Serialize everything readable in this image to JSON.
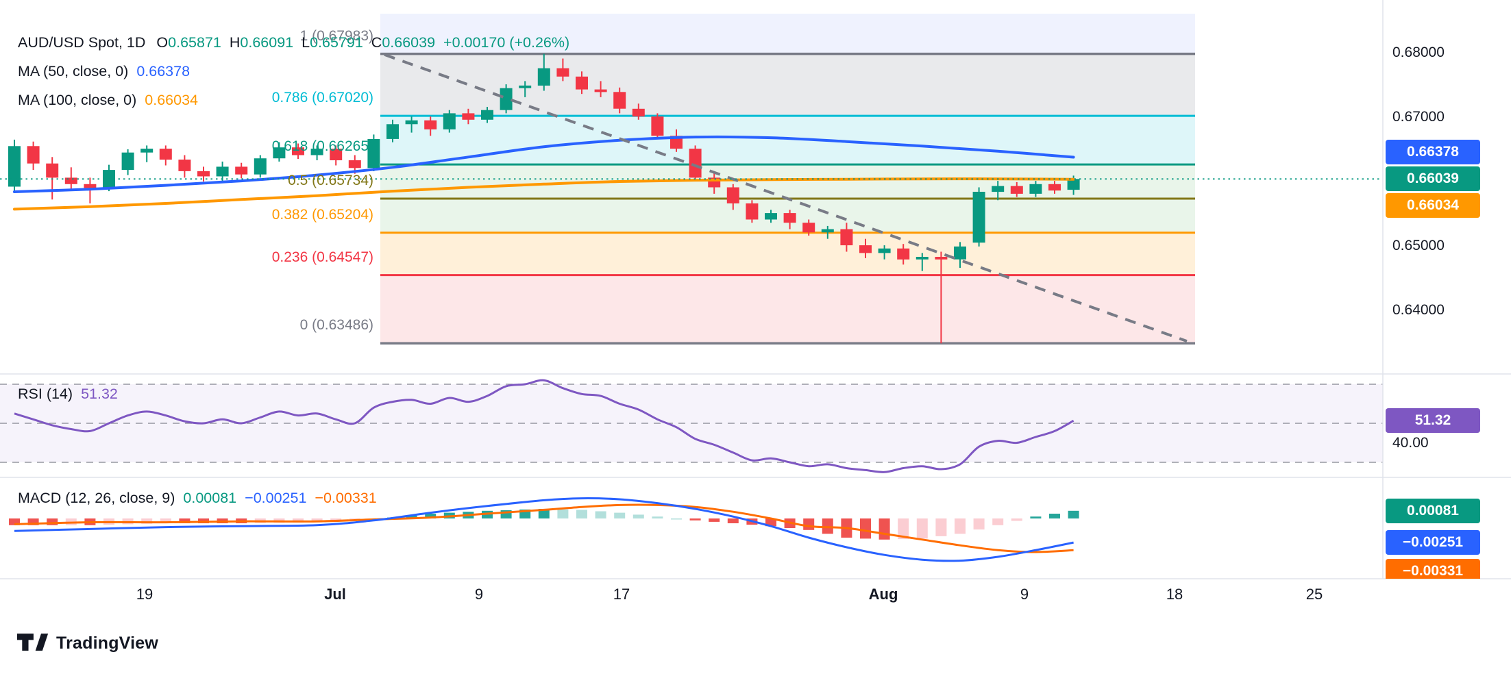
{
  "header": {
    "symbol": "AUD/USD Spot, 1D",
    "ohlc": [
      {
        "label": "O",
        "value": "0.65871"
      },
      {
        "label": "H",
        "value": "0.66091"
      },
      {
        "label": "L",
        "value": "0.65791"
      },
      {
        "label": "C",
        "value": "0.66039"
      }
    ],
    "change": "+0.00170 (+0.26%)"
  },
  "indicators": {
    "ma50": {
      "name": "MA (50, close, 0)",
      "value": "0.66378",
      "color": "#2962FF"
    },
    "ma100": {
      "name": "MA (100, close, 0)",
      "value": "0.66034",
      "color": "#FF9800"
    },
    "rsi": {
      "name": "RSI (14)",
      "value": "51.32",
      "color": "#7E57C2"
    },
    "macd": {
      "name": "MACD (12, 26, close, 9)",
      "hist": "0.00081",
      "macd": "−0.00251",
      "signal": "−0.00331",
      "hist_color": "#089981",
      "macd_color": "#2962FF",
      "signal_color": "#FF6D00"
    }
  },
  "badges": {
    "ma50": {
      "text": "0.66378",
      "color": "#2962FF"
    },
    "last": {
      "text": "0.66039",
      "color": "#089981"
    },
    "ma100": {
      "text": "0.66034",
      "color": "#FF9800"
    },
    "rsi": {
      "text": "51.32",
      "color": "#7E57C2"
    },
    "macd_hist": {
      "text": "0.00081",
      "color": "#089981"
    },
    "macd_line": {
      "text": "−0.00251",
      "color": "#2962FF"
    },
    "macd_signal": {
      "text": "−0.00331",
      "color": "#FF6D00"
    }
  },
  "footer": {
    "logo_text": "TradingView"
  },
  "chart_data": {
    "type": "candlestick",
    "title": "AUD/USD Spot, 1D",
    "pane_order": [
      "price",
      "rsi",
      "macd"
    ],
    "last_bar": {
      "open": 0.65871,
      "high": 0.66091,
      "low": 0.65791,
      "close": 0.66039,
      "change": "+0.00170",
      "change_pct": "+0.26%"
    },
    "axes": {
      "price_ticks": [
        {
          "text": "0.68000",
          "value": 0.68
        },
        {
          "text": "0.67000",
          "value": 0.67
        },
        {
          "text": "0.65000",
          "value": 0.65
        },
        {
          "text": "0.64000",
          "value": 0.64
        }
      ],
      "rsi_tick": {
        "text": "40.00",
        "value": 40
      },
      "time_ticks": [
        "19",
        "Jul",
        "9",
        "17",
        "Aug",
        "9",
        "18",
        "25"
      ]
    },
    "colors": {
      "up": "#089981",
      "down": "#F23645",
      "ma50": "#2962FF",
      "ma100": "#FF9800",
      "rsi": "#7E57C2",
      "rsi_band": "rgba(126,87,194,0.07)",
      "macd": "#2962FF",
      "signal": "#FF6D00",
      "hist_up": "#26A69A",
      "hist_up_weak": "#B2DFDB",
      "hist_down": "#EF5350",
      "hist_down_weak": "#FBCDD2",
      "trend": "#787B86",
      "current_line": "#089981",
      "separator": "#E0E3EB"
    },
    "candles": [
      [
        0.6592,
        0.6665,
        0.6585,
        0.6655
      ],
      [
        0.6655,
        0.6662,
        0.6618,
        0.6628
      ],
      [
        0.6628,
        0.6638,
        0.6572,
        0.6606
      ],
      [
        0.6606,
        0.6622,
        0.6586,
        0.6596
      ],
      [
        0.6596,
        0.6606,
        0.6566,
        0.659
      ],
      [
        0.659,
        0.6626,
        0.6585,
        0.6618
      ],
      [
        0.6618,
        0.665,
        0.661,
        0.6645
      ],
      [
        0.6645,
        0.6656,
        0.663,
        0.6651
      ],
      [
        0.6651,
        0.6656,
        0.6625,
        0.6634
      ],
      [
        0.6634,
        0.6641,
        0.6606,
        0.6616
      ],
      [
        0.6616,
        0.6623,
        0.66,
        0.6608
      ],
      [
        0.6608,
        0.6631,
        0.6601,
        0.6623
      ],
      [
        0.6623,
        0.6629,
        0.6605,
        0.6611
      ],
      [
        0.6611,
        0.6641,
        0.6606,
        0.6636
      ],
      [
        0.6636,
        0.6661,
        0.6631,
        0.6653
      ],
      [
        0.6653,
        0.6659,
        0.6635,
        0.6641
      ],
      [
        0.6641,
        0.6656,
        0.6633,
        0.6651
      ],
      [
        0.6651,
        0.6656,
        0.6625,
        0.6633
      ],
      [
        0.6633,
        0.6641,
        0.6612,
        0.6621
      ],
      [
        0.6621,
        0.6673,
        0.6616,
        0.6666
      ],
      [
        0.6666,
        0.6696,
        0.6661,
        0.6689
      ],
      [
        0.6689,
        0.6701,
        0.6676,
        0.6695
      ],
      [
        0.6695,
        0.6701,
        0.6671,
        0.6681
      ],
      [
        0.6681,
        0.6711,
        0.6676,
        0.6706
      ],
      [
        0.6706,
        0.6713,
        0.6689,
        0.6696
      ],
      [
        0.6696,
        0.6716,
        0.6691,
        0.6711
      ],
      [
        0.6711,
        0.6751,
        0.6706,
        0.6745
      ],
      [
        0.6745,
        0.6756,
        0.6731,
        0.6749
      ],
      [
        0.6749,
        0.67983,
        0.6741,
        0.6776
      ],
      [
        0.6776,
        0.6791,
        0.6756,
        0.6763
      ],
      [
        0.6763,
        0.6771,
        0.6736,
        0.6743
      ],
      [
        0.6743,
        0.6756,
        0.6731,
        0.6739
      ],
      [
        0.6739,
        0.6746,
        0.6706,
        0.6713
      ],
      [
        0.6713,
        0.6721,
        0.6696,
        0.6701
      ],
      [
        0.6701,
        0.6706,
        0.6666,
        0.6671
      ],
      [
        0.6671,
        0.6681,
        0.6646,
        0.6651
      ],
      [
        0.6651,
        0.6656,
        0.6601,
        0.6606
      ],
      [
        0.6606,
        0.6616,
        0.6581,
        0.6591
      ],
      [
        0.6591,
        0.6596,
        0.6556,
        0.6566
      ],
      [
        0.6566,
        0.6571,
        0.6536,
        0.6541
      ],
      [
        0.6541,
        0.6556,
        0.6536,
        0.6551
      ],
      [
        0.6551,
        0.6556,
        0.6526,
        0.6536
      ],
      [
        0.6536,
        0.6541,
        0.6516,
        0.6521
      ],
      [
        0.6521,
        0.6531,
        0.6511,
        0.6526
      ],
      [
        0.6526,
        0.6536,
        0.6491,
        0.6501
      ],
      [
        0.6501,
        0.6511,
        0.6481,
        0.6489
      ],
      [
        0.6489,
        0.6501,
        0.6479,
        0.6496
      ],
      [
        0.6496,
        0.6503,
        0.6471,
        0.6479
      ],
      [
        0.6479,
        0.6489,
        0.6461,
        0.6483
      ],
      [
        0.6483,
        0.6491,
        0.63486,
        0.6479
      ],
      [
        0.6479,
        0.6506,
        0.6466,
        0.6499
      ],
      [
        0.6505,
        0.6591,
        0.6499,
        0.6584
      ],
      [
        0.6584,
        0.6601,
        0.6571,
        0.6593
      ],
      [
        0.6593,
        0.6599,
        0.6576,
        0.6581
      ],
      [
        0.6581,
        0.6601,
        0.6576,
        0.6596
      ],
      [
        0.6596,
        0.6601,
        0.6581,
        0.6586
      ],
      [
        0.65871,
        0.66091,
        0.65791,
        0.66039
      ]
    ],
    "ma50": {
      "period": 50,
      "value": 0.66378,
      "samples": [
        [
          0,
          0.6584
        ],
        [
          4,
          0.6588
        ],
        [
          8,
          0.6594
        ],
        [
          12,
          0.6601
        ],
        [
          16,
          0.661
        ],
        [
          20,
          0.6622
        ],
        [
          24,
          0.6638
        ],
        [
          28,
          0.6654
        ],
        [
          32,
          0.6664
        ],
        [
          36,
          0.6669
        ],
        [
          40,
          0.6668
        ],
        [
          44,
          0.6662
        ],
        [
          48,
          0.6655
        ],
        [
          52,
          0.6647
        ],
        [
          56,
          0.66378
        ]
      ]
    },
    "ma100": {
      "period": 100,
      "value": 0.66034,
      "samples": [
        [
          0,
          0.6557
        ],
        [
          4,
          0.6561
        ],
        [
          8,
          0.6566
        ],
        [
          12,
          0.6572
        ],
        [
          16,
          0.6578
        ],
        [
          20,
          0.6585
        ],
        [
          24,
          0.6591
        ],
        [
          28,
          0.6596
        ],
        [
          32,
          0.66
        ],
        [
          36,
          0.6602
        ],
        [
          40,
          0.6603
        ],
        [
          44,
          0.66035
        ],
        [
          48,
          0.6604
        ],
        [
          52,
          0.6604
        ],
        [
          56,
          0.66034
        ]
      ]
    },
    "fib": {
      "levels": [
        {
          "label": "1 (0.67983)",
          "price": 0.67983,
          "color": "#787B86"
        },
        {
          "label": "0.786 (0.67020)",
          "price": 0.6702,
          "color": "#00BCD4"
        },
        {
          "label": "0.618 (0.66265)",
          "price": 0.66265,
          "color": "#089981"
        },
        {
          "label": "0.5 (0.65734)",
          "price": 0.65734,
          "color": "#827717"
        },
        {
          "label": "0.382 (0.65204)",
          "price": 0.65204,
          "color": "#FF9800"
        },
        {
          "label": "0.236 (0.64547)",
          "price": 0.64547,
          "color": "#F23645"
        },
        {
          "label": "0 (0.63486)",
          "price": 0.63486,
          "color": "#787B86"
        }
      ],
      "band_fills": [
        "rgba(96,128,243,0.10)",
        "rgba(120,123,134,0.16)",
        "rgba(0,188,212,0.13)",
        "rgba(76,175,80,0.12)",
        "rgba(76,175,80,0.12)",
        "rgba(255,152,0,0.15)",
        "rgba(242,54,69,0.12)"
      ]
    },
    "trend_line": {
      "from_price": 0.6797,
      "to_price": 0.6352
    },
    "current_price_line": 0.66039,
    "rsi": {
      "period": 14,
      "last": 51.32,
      "upper": 70,
      "middle": 50,
      "lower": 30,
      "values": [
        55,
        52,
        49,
        47,
        46,
        50,
        54,
        56,
        54,
        51,
        50,
        52,
        50,
        53,
        56,
        54,
        55,
        52,
        50,
        58,
        61,
        62,
        60,
        63,
        61,
        64,
        69,
        70,
        72,
        68,
        65,
        64,
        60,
        57,
        52,
        48,
        42,
        39,
        35,
        31,
        32,
        30,
        28,
        29,
        27,
        26,
        25,
        27,
        28,
        26.5,
        29,
        38,
        41,
        40,
        43,
        46,
        51.32
      ]
    },
    "macd": {
      "fast": 12,
      "slow": 26,
      "source": "close",
      "signal_period": 9,
      "hist_last": 0.00081,
      "macd_last": -0.00251,
      "signal_last": -0.00331,
      "macd_samples": [
        [
          0,
          -0.0013
        ],
        [
          4,
          -0.0011
        ],
        [
          8,
          -0.0009
        ],
        [
          12,
          -0.0008
        ],
        [
          16,
          -0.0007
        ],
        [
          19,
          -0.0002
        ],
        [
          22,
          0.0006
        ],
        [
          25,
          0.0013
        ],
        [
          28,
          0.0019
        ],
        [
          30,
          0.0021
        ],
        [
          32,
          0.002
        ],
        [
          34,
          0.0016
        ],
        [
          36,
          0.001
        ],
        [
          38,
          0.0002
        ],
        [
          40,
          -0.0008
        ],
        [
          42,
          -0.002
        ],
        [
          44,
          -0.003
        ],
        [
          46,
          -0.0038
        ],
        [
          48,
          -0.0043
        ],
        [
          50,
          -0.0044
        ],
        [
          52,
          -0.004
        ],
        [
          54,
          -0.0033
        ],
        [
          56,
          -0.00251
        ]
      ],
      "signal_samples": [
        [
          0,
          -0.0006
        ],
        [
          4,
          -0.0004
        ],
        [
          8,
          -0.0004
        ],
        [
          12,
          -0.0003
        ],
        [
          16,
          -0.0003
        ],
        [
          19,
          -0.0001
        ],
        [
          22,
          0.0001
        ],
        [
          25,
          0.0005
        ],
        [
          28,
          0.0009
        ],
        [
          30,
          0.0012
        ],
        [
          32,
          0.0014
        ],
        [
          34,
          0.0014
        ],
        [
          36,
          0.0012
        ],
        [
          38,
          0.0007
        ],
        [
          40,
          0.0
        ],
        [
          42,
          -0.0008
        ],
        [
          44,
          -0.001
        ],
        [
          46,
          -0.0016
        ],
        [
          48,
          -0.0022
        ],
        [
          50,
          -0.0028
        ],
        [
          52,
          -0.0033
        ],
        [
          54,
          -0.0035
        ],
        [
          56,
          -0.00331
        ]
      ]
    }
  }
}
